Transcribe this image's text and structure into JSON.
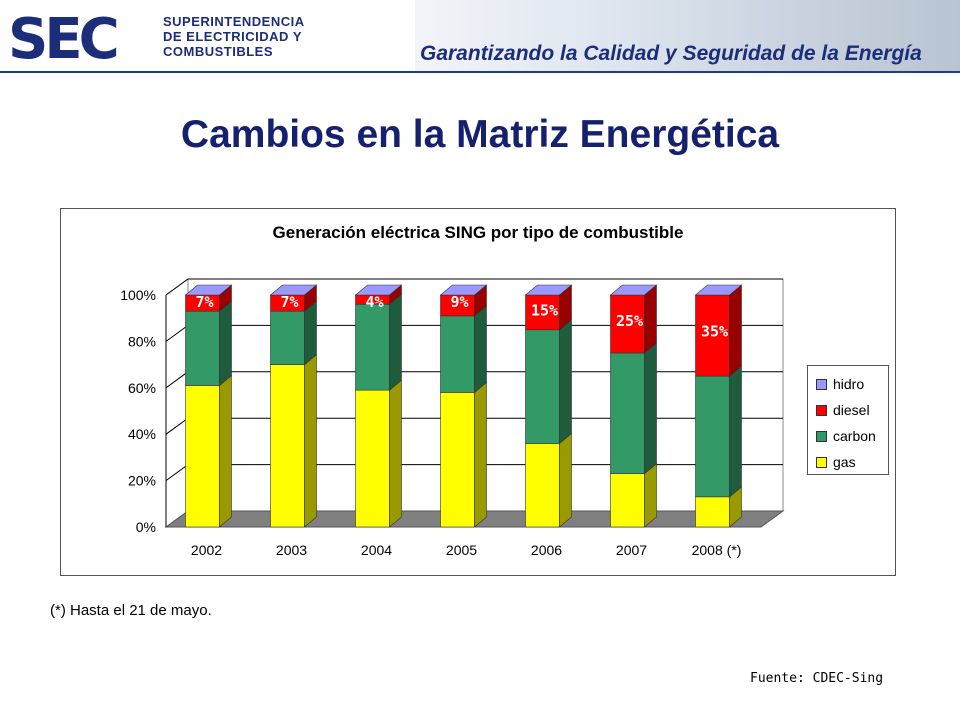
{
  "header": {
    "logo_text": "SEC",
    "org_lines": [
      "SUPERINTENDENCIA",
      "DE ELECTRICIDAD Y",
      "COMBUSTIBLES"
    ],
    "tagline": "Garantizando la Calidad y Seguridad de la Energía"
  },
  "page_title": "Cambios en la Matriz Energética",
  "chart_data": {
    "type": "bar",
    "stacked": true,
    "three_d": true,
    "title": "Generación eléctrica SING por tipo de combustible",
    "categories": [
      "2002",
      "2003",
      "2004",
      "2005",
      "2006",
      "2007",
      "2008 (*)"
    ],
    "ylim": [
      0,
      100
    ],
    "yticks": [
      "0%",
      "20%",
      "40%",
      "60%",
      "80%",
      "100%"
    ],
    "grid": true,
    "legend_position": "right",
    "series": [
      {
        "name": "gas",
        "color": "#ffff00",
        "values": [
          61,
          70,
          59,
          58,
          36,
          23,
          13
        ]
      },
      {
        "name": "carbon",
        "color": "#339966",
        "values": [
          32,
          23,
          37,
          33,
          49,
          52,
          52
        ]
      },
      {
        "name": "diesel",
        "color": "#ff0000",
        "values": [
          7,
          7,
          4,
          9,
          15,
          25,
          35
        ]
      },
      {
        "name": "hidro",
        "color": "#9999ff",
        "values": [
          0,
          0,
          0,
          0,
          0,
          0,
          0
        ]
      }
    ],
    "legend_order": [
      "hidro",
      "diesel",
      "carbon",
      "gas"
    ],
    "data_labels": [
      "7%",
      "7%",
      "4%",
      "9%",
      "15%",
      "25%",
      "35%"
    ]
  },
  "footnote": "(*) Hasta el 21 de mayo.",
  "source": "Fuente: CDEC-Sing"
}
